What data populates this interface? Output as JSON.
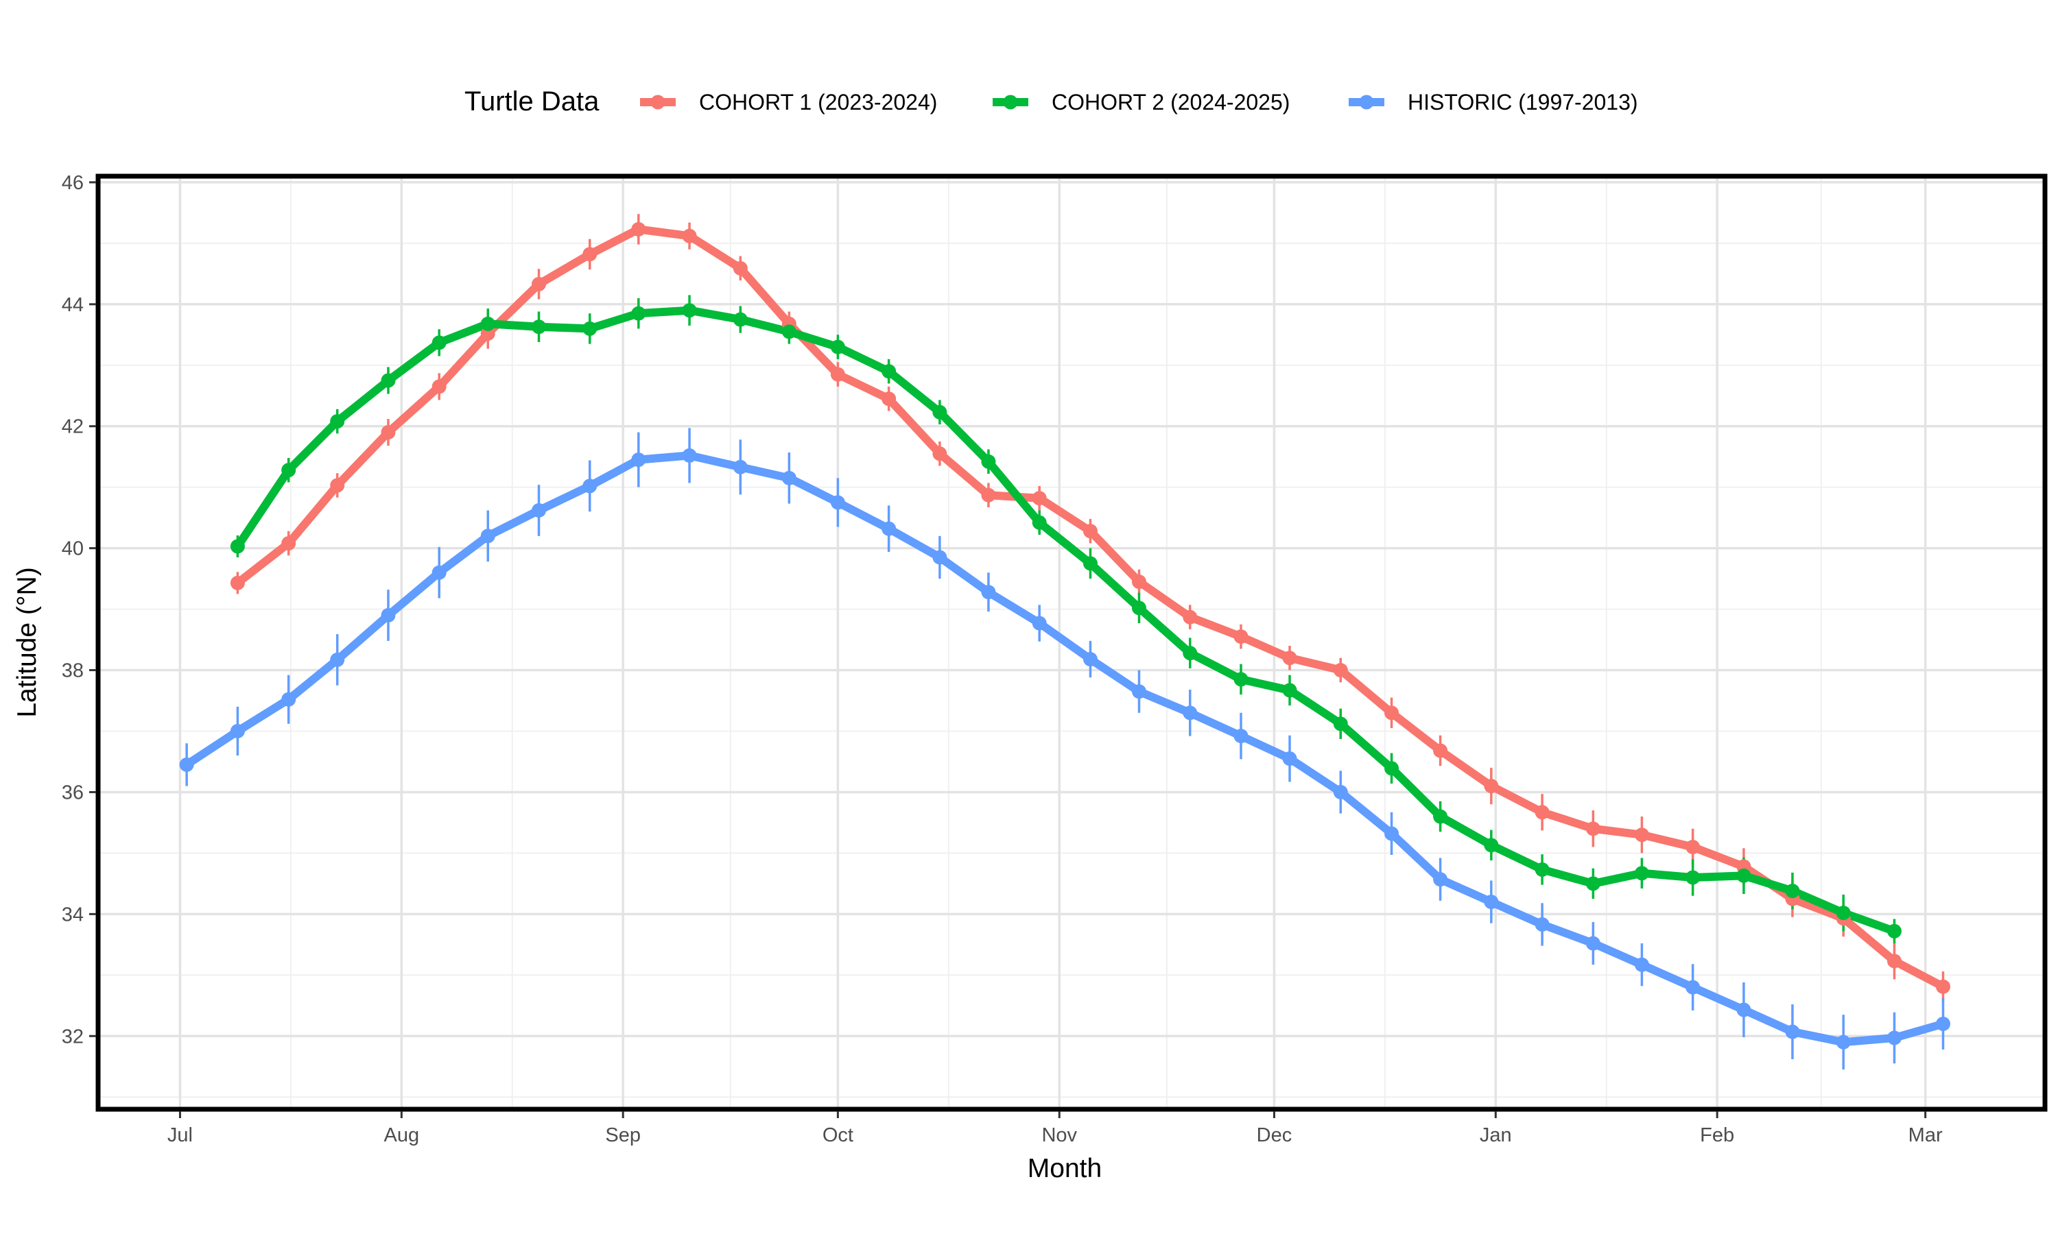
{
  "legend": {
    "title": "Turtle Data"
  },
  "chart_data": {
    "type": "line",
    "title": "",
    "xlabel": "Month",
    "ylabel": "Latitude (°N)",
    "x_unit": "months since start of July",
    "xlim": [
      -0.37,
      8.42
    ],
    "ylim": [
      30.8,
      46.1
    ],
    "x_ticks": [
      {
        "label": "Jul",
        "value": 0
      },
      {
        "label": "Aug",
        "value": 1
      },
      {
        "label": "Sep",
        "value": 2
      },
      {
        "label": "Oct",
        "value": 2.97
      },
      {
        "label": "Nov",
        "value": 3.97
      },
      {
        "label": "Dec",
        "value": 4.94
      },
      {
        "label": "Jan",
        "value": 5.94
      },
      {
        "label": "Feb",
        "value": 6.94
      },
      {
        "label": "Mar",
        "value": 7.88
      }
    ],
    "y_ticks": [
      32,
      34,
      36,
      38,
      40,
      42,
      44,
      46
    ],
    "grid": true,
    "legend_position": "top",
    "series": [
      {
        "name": "COHORT 1 (2023-2024)",
        "color": "#F8766D",
        "x": [
          0.26,
          0.49,
          0.71,
          0.94,
          1.17,
          1.39,
          1.62,
          1.85,
          2.07,
          2.3,
          2.53,
          2.75,
          2.97,
          3.2,
          3.43,
          3.65,
          3.88,
          4.11,
          4.33,
          4.56,
          4.79,
          5.01,
          5.24,
          5.47,
          5.69,
          5.92,
          6.15,
          6.38,
          6.6,
          6.83,
          7.06,
          7.28,
          7.51,
          7.74,
          7.96
        ],
        "y": [
          39.43,
          40.08,
          41.03,
          41.9,
          42.65,
          43.52,
          44.33,
          44.82,
          45.23,
          45.12,
          44.59,
          43.68,
          42.85,
          42.45,
          41.55,
          40.87,
          40.82,
          40.28,
          39.45,
          38.87,
          38.55,
          38.2,
          38.0,
          37.3,
          36.68,
          36.1,
          35.67,
          35.4,
          35.3,
          35.1,
          34.78,
          34.25,
          33.93,
          33.23,
          32.81
        ],
        "error": [
          0.18,
          0.2,
          0.2,
          0.22,
          0.22,
          0.25,
          0.25,
          0.25,
          0.25,
          0.22,
          0.2,
          0.2,
          0.2,
          0.2,
          0.2,
          0.2,
          0.2,
          0.2,
          0.2,
          0.2,
          0.2,
          0.2,
          0.2,
          0.25,
          0.25,
          0.3,
          0.3,
          0.3,
          0.3,
          0.3,
          0.3,
          0.3,
          0.3,
          0.3,
          0.25
        ]
      },
      {
        "name": "COHORT 2 (2024-2025)",
        "color": "#00BA38",
        "x": [
          0.26,
          0.49,
          0.71,
          0.94,
          1.17,
          1.39,
          1.62,
          1.85,
          2.07,
          2.3,
          2.53,
          2.75,
          2.97,
          3.2,
          3.43,
          3.65,
          3.88,
          4.11,
          4.33,
          4.56,
          4.79,
          5.01,
          5.24,
          5.47,
          5.69,
          5.92,
          6.15,
          6.38,
          6.6,
          6.83,
          7.06,
          7.28,
          7.51,
          7.74
        ],
        "y": [
          40.03,
          41.28,
          42.08,
          42.75,
          43.37,
          43.68,
          43.63,
          43.6,
          43.85,
          43.9,
          43.75,
          43.55,
          43.3,
          42.9,
          42.23,
          41.42,
          40.42,
          39.75,
          39.02,
          38.28,
          37.85,
          37.67,
          37.12,
          36.39,
          35.6,
          35.13,
          34.73,
          34.5,
          34.67,
          34.6,
          34.63,
          34.38,
          34.02,
          33.72
        ],
        "error": [
          0.18,
          0.2,
          0.2,
          0.22,
          0.22,
          0.25,
          0.25,
          0.25,
          0.25,
          0.25,
          0.22,
          0.2,
          0.2,
          0.2,
          0.2,
          0.2,
          0.2,
          0.25,
          0.25,
          0.25,
          0.25,
          0.25,
          0.25,
          0.25,
          0.25,
          0.25,
          0.25,
          0.25,
          0.25,
          0.3,
          0.3,
          0.3,
          0.3,
          0.2
        ]
      },
      {
        "name": "HISTORIC (1997-2013)",
        "color": "#619CFF",
        "x": [
          0.03,
          0.26,
          0.49,
          0.71,
          0.94,
          1.17,
          1.39,
          1.62,
          1.85,
          2.07,
          2.3,
          2.53,
          2.75,
          2.97,
          3.2,
          3.43,
          3.65,
          3.88,
          4.11,
          4.33,
          4.56,
          4.79,
          5.01,
          5.24,
          5.47,
          5.69,
          5.92,
          6.15,
          6.38,
          6.6,
          6.83,
          7.06,
          7.28,
          7.51,
          7.74,
          7.96
        ],
        "y": [
          36.45,
          37.0,
          37.52,
          38.17,
          38.9,
          39.6,
          40.2,
          40.62,
          41.02,
          41.45,
          41.52,
          41.33,
          41.15,
          40.75,
          40.32,
          39.85,
          39.28,
          38.77,
          38.18,
          37.65,
          37.3,
          36.92,
          36.55,
          36.0,
          35.32,
          34.57,
          34.2,
          33.83,
          33.52,
          33.17,
          32.8,
          32.43,
          32.07,
          31.9,
          31.97,
          32.2
        ],
        "error": [
          0.35,
          0.4,
          0.4,
          0.42,
          0.42,
          0.42,
          0.42,
          0.42,
          0.42,
          0.45,
          0.45,
          0.45,
          0.42,
          0.4,
          0.38,
          0.35,
          0.32,
          0.3,
          0.3,
          0.35,
          0.38,
          0.38,
          0.38,
          0.35,
          0.35,
          0.35,
          0.35,
          0.35,
          0.35,
          0.35,
          0.38,
          0.45,
          0.45,
          0.45,
          0.42,
          0.42
        ]
      }
    ]
  }
}
